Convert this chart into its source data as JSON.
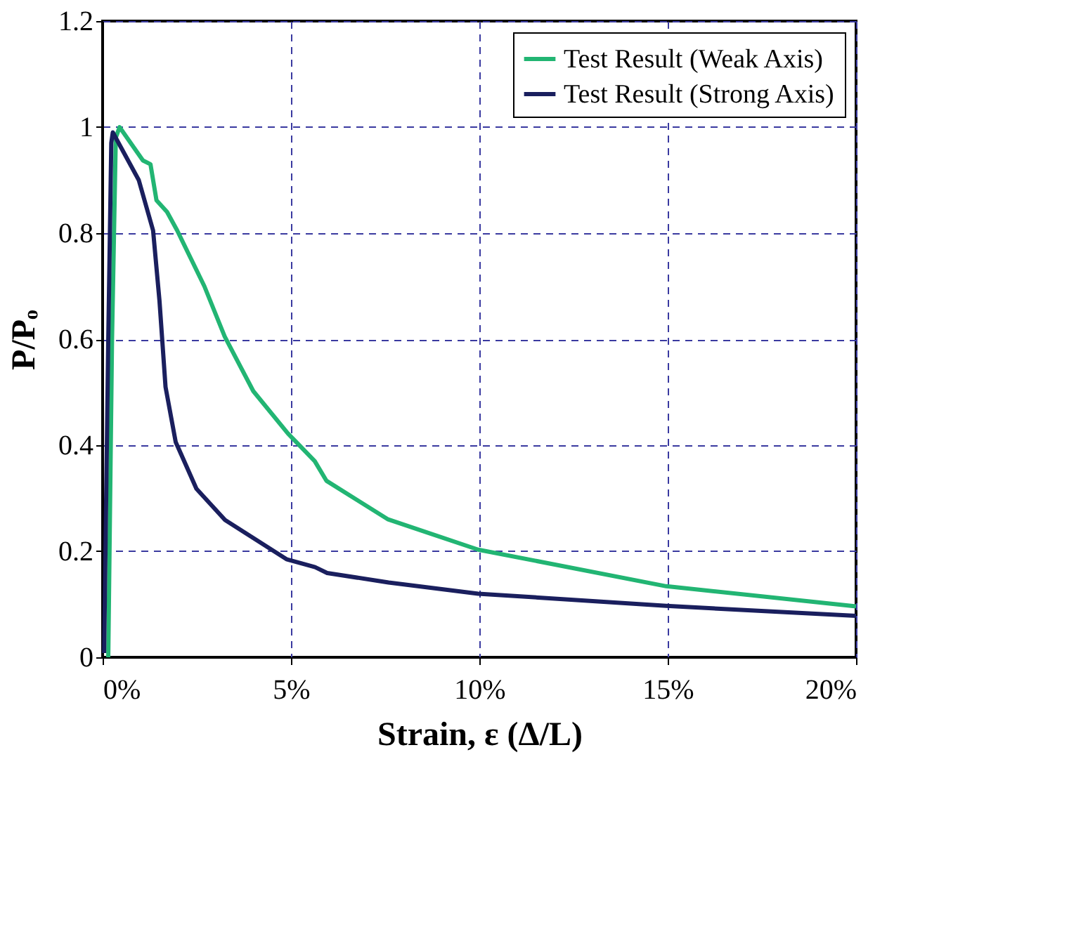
{
  "chart_data": {
    "type": "line",
    "xlabel": "Strain, ε (Δ/L)",
    "ylabel": "P/Pₒ",
    "xlim": [
      0,
      20
    ],
    "ylim": [
      0,
      1.2
    ],
    "xticks": [
      {
        "value": 0,
        "label": "0%"
      },
      {
        "value": 5,
        "label": "5%"
      },
      {
        "value": 10,
        "label": "10%"
      },
      {
        "value": 15,
        "label": "15%"
      },
      {
        "value": 20,
        "label": "20%"
      }
    ],
    "yticks": [
      0,
      0.2,
      0.4,
      0.6,
      0.8,
      1,
      1.2
    ],
    "grid": true,
    "legend": "top right",
    "line_style": "solid",
    "marker": "none",
    "series": [
      {
        "name": "Test Result (Weak Axis)",
        "color": "#22b573",
        "x": [
          0.15,
          0.25,
          0.35,
          0.45,
          1.07,
          1.27,
          1.43,
          1.71,
          1.98,
          2.7,
          3.24,
          4.0,
          4.92,
          5.63,
          5.94,
          7.58,
          9.97,
          14.96,
          20
        ],
        "values": [
          0,
          0.6,
          0.98,
          1.0,
          0.937,
          0.93,
          0.862,
          0.84,
          0.805,
          0.7,
          0.605,
          0.502,
          0.422,
          0.37,
          0.333,
          0.26,
          0.203,
          0.134,
          0.096
        ]
      },
      {
        "name": "Test Result (Strong Axis)",
        "color": "#1a1f5e",
        "x": [
          0.04,
          0.15,
          0.23,
          0.27,
          0.96,
          1.34,
          1.51,
          1.67,
          1.94,
          2.49,
          3.25,
          4.88,
          5.64,
          5.96,
          7.59,
          9.97,
          14.96,
          20
        ],
        "values": [
          0.008,
          0.6,
          0.97,
          0.99,
          0.9,
          0.805,
          0.672,
          0.51,
          0.406,
          0.318,
          0.259,
          0.185,
          0.17,
          0.159,
          0.141,
          0.12,
          0.097,
          0.078
        ]
      }
    ]
  }
}
